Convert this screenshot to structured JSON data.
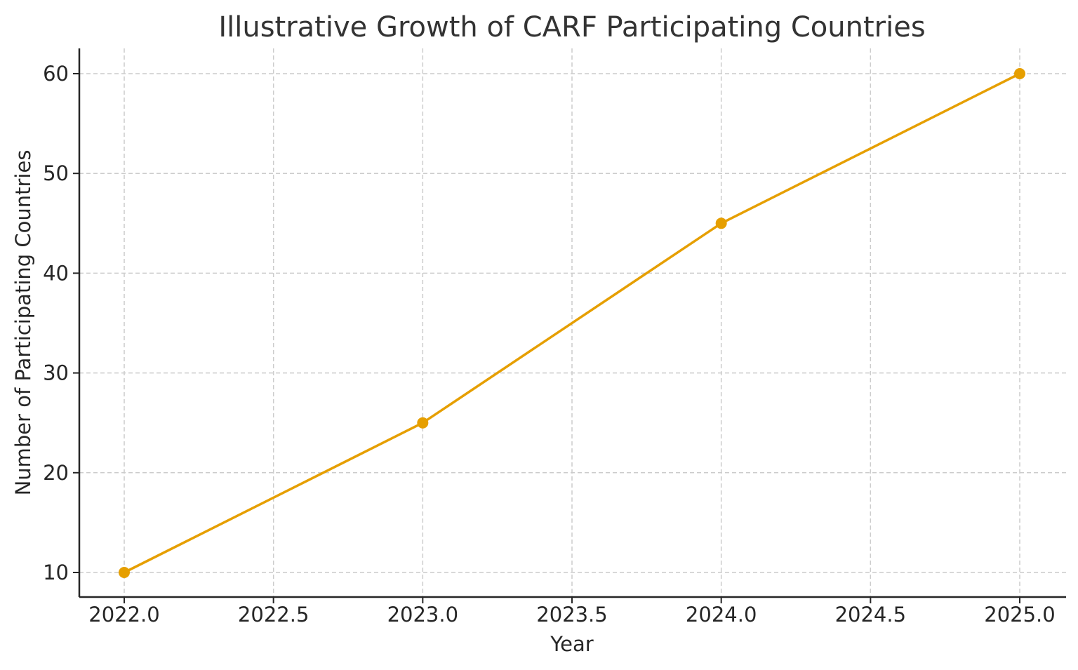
{
  "chart_data": {
    "type": "line",
    "title": "Illustrative Growth of CARF Participating Countries",
    "xlabel": "Year",
    "ylabel": "Number of Participating Countries",
    "x": [
      2022,
      2023,
      2024,
      2025
    ],
    "series": [
      {
        "name": "CARF Participating Countries",
        "values": [
          10,
          25,
          45,
          60
        ],
        "color": "#E69F00",
        "marker": "circle"
      }
    ],
    "xlim": [
      2021.85,
      2025.15
    ],
    "ylim": [
      7.5,
      62.5
    ],
    "xticks": [
      2022.0,
      2022.5,
      2023.0,
      2023.5,
      2024.0,
      2024.5,
      2025.0
    ],
    "xtick_labels": [
      "2022.0",
      "2022.5",
      "2023.0",
      "2023.5",
      "2024.0",
      "2024.5",
      "2025.0"
    ],
    "yticks": [
      10,
      20,
      30,
      40,
      50,
      60
    ],
    "ytick_labels": [
      "10",
      "20",
      "30",
      "40",
      "50",
      "60"
    ],
    "grid": true,
    "grid_style": "dashed",
    "legend": null
  }
}
